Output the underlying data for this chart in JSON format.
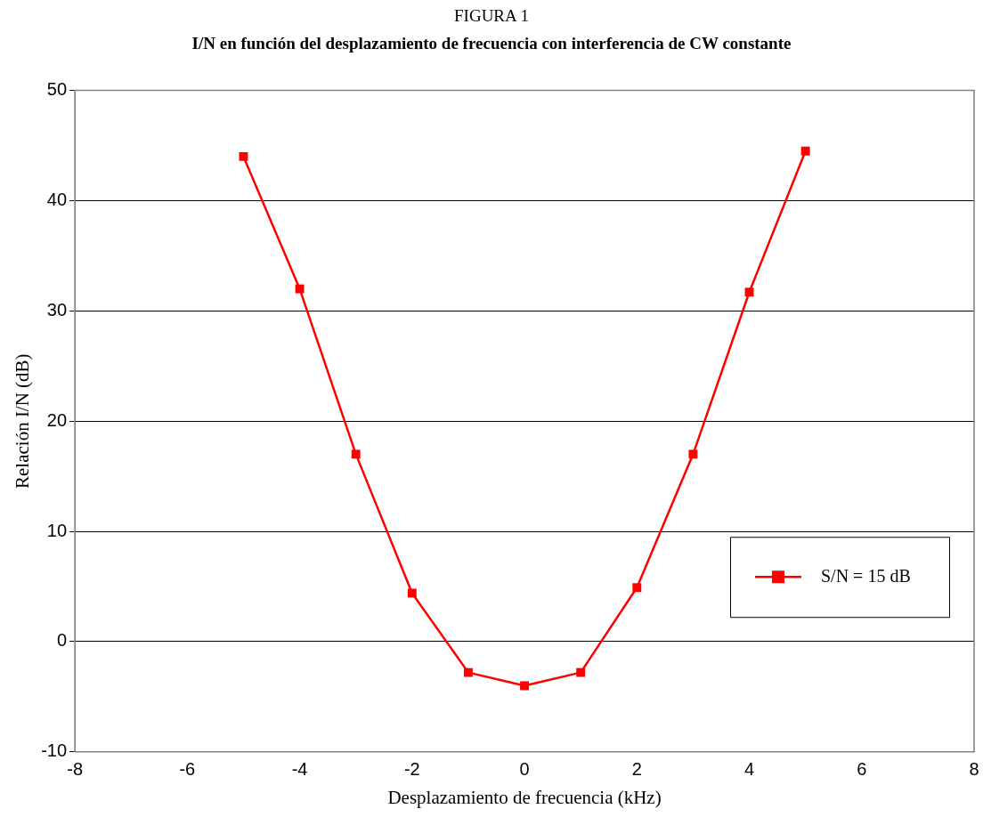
{
  "chart_data": {
    "type": "line",
    "title": "FIGURA 1",
    "subtitle": "I/N en función del desplazamiento de frecuencia con interferencia de CW constante",
    "xlabel": "Desplazamiento de frecuencia (kHz)",
    "ylabel": "Relación I/N (dB)",
    "x": [
      -5,
      -4,
      -3,
      -2,
      -1,
      0,
      1,
      2,
      3,
      4,
      5
    ],
    "series": [
      {
        "name": "S/N = 15 dB",
        "color": "#ff0000",
        "values": [
          44.0,
          32.0,
          17.0,
          4.4,
          -2.8,
          -4.0,
          -2.8,
          4.9,
          17.0,
          31.7,
          44.5
        ]
      }
    ],
    "xlim": [
      -8,
      8
    ],
    "xticks": [
      -8,
      -6,
      -4,
      -2,
      0,
      2,
      4,
      6,
      8
    ],
    "ylim": [
      -10,
      50
    ],
    "yticks": [
      -10,
      0,
      10,
      20,
      30,
      40,
      50
    ],
    "grid": "y",
    "legend": "right",
    "marker": "square",
    "line_style": "solid"
  }
}
